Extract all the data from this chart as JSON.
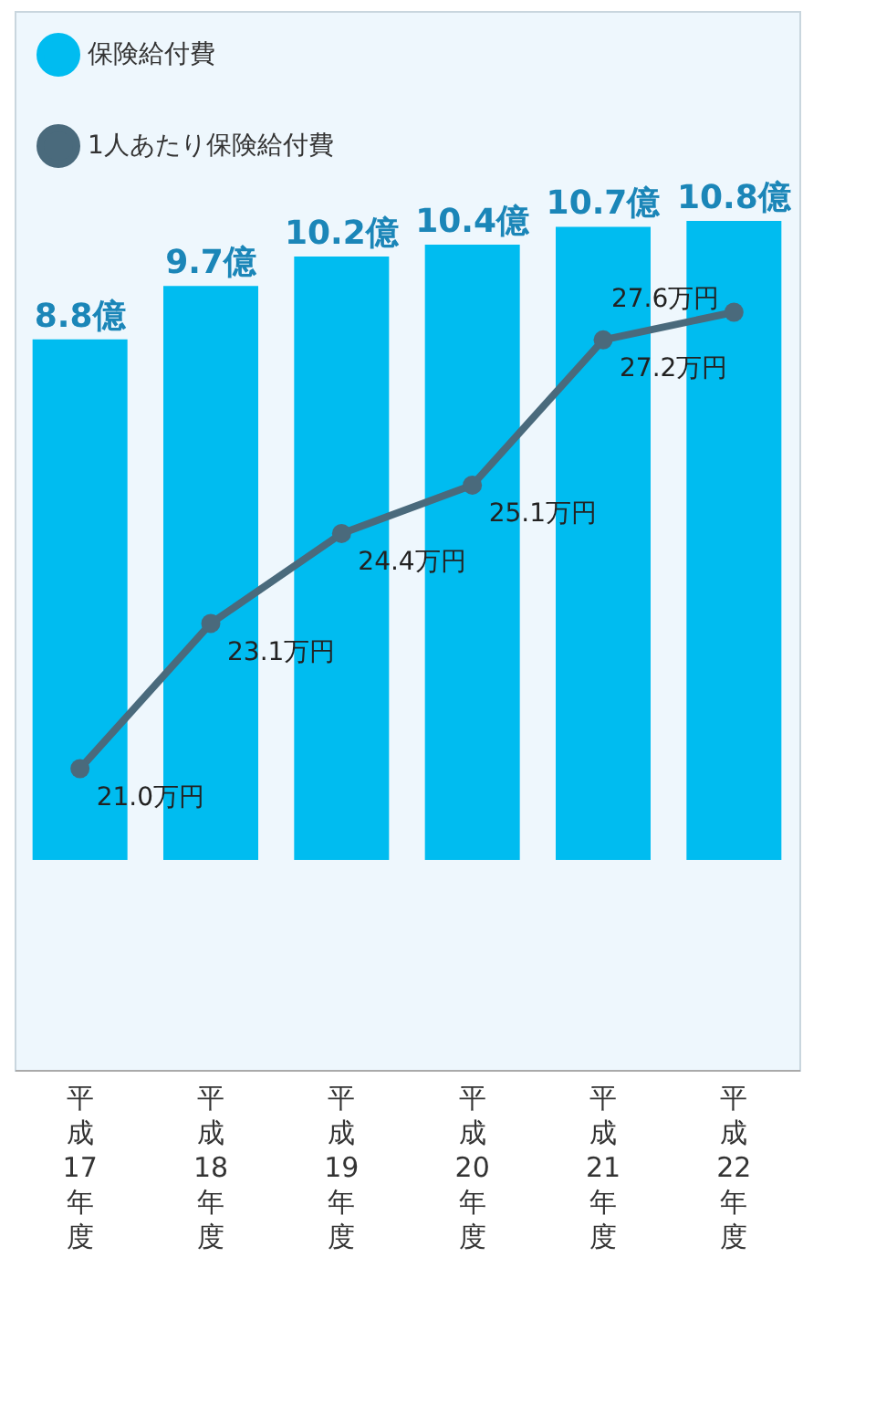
{
  "chart_data": {
    "type": "bar",
    "categories": [
      "平成17年度",
      "平成18年度",
      "平成19年度",
      "平成20年度",
      "平成21年度",
      "平成22年度"
    ],
    "series": [
      {
        "name": "保険給付費",
        "color": "#00bcf0",
        "values": [
          8.8,
          9.7,
          10.2,
          10.4,
          10.7,
          10.8
        ],
        "value_labels": [
          "8.8億",
          "9.7億",
          "10.2億",
          "10.4億",
          "10.7億",
          "10.8億"
        ]
      },
      {
        "name": "1人あたり保険給付費",
        "type": "line",
        "axis": "y2",
        "color": "#4a6a7c",
        "values": [
          21.0,
          23.1,
          24.4,
          25.1,
          27.2,
          27.6
        ],
        "value_labels": [
          "21.0万円",
          "23.1万円",
          "24.4万円",
          "25.1万円",
          "27.2万円",
          "27.6万円"
        ]
      }
    ],
    "tick_labels": "x",
    "legend": "top left",
    "marker": "circle",
    "line_style": "solid"
  }
}
